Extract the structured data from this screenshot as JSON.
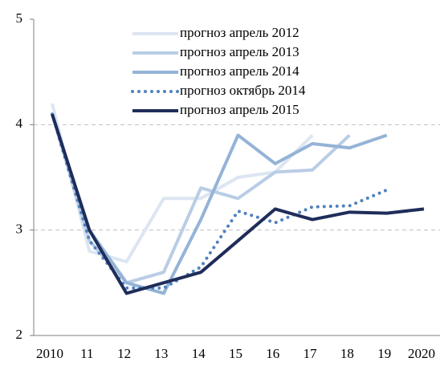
{
  "chart_data": {
    "type": "line",
    "categories": [
      "2010",
      "11",
      "12",
      "13",
      "14",
      "15",
      "16",
      "17",
      "18",
      "19",
      "2020"
    ],
    "series": [
      {
        "name": "прогноз апрель 2012",
        "color": "#dce6f2",
        "dash": false,
        "values": [
          4.2,
          2.8,
          2.7,
          3.3,
          3.3,
          3.5,
          3.55,
          3.9,
          null,
          null,
          null
        ]
      },
      {
        "name": "прогноз апрель 2013",
        "color": "#b9cde5",
        "dash": false,
        "values": [
          4.1,
          2.9,
          2.5,
          2.6,
          3.4,
          3.3,
          3.55,
          3.57,
          3.9,
          null,
          null
        ]
      },
      {
        "name": "прогноз апрель 2014",
        "color": "#95b3d7",
        "dash": false,
        "values": [
          4.1,
          3.0,
          2.5,
          2.4,
          3.1,
          3.9,
          3.63,
          3.82,
          3.78,
          3.9,
          null
        ]
      },
      {
        "name": "прогноз октябрь 2014",
        "color": "#4f81bd",
        "dash": true,
        "values": [
          4.1,
          2.9,
          2.45,
          2.45,
          2.65,
          3.18,
          3.07,
          3.22,
          3.23,
          3.38,
          null
        ]
      },
      {
        "name": "прогноз апрель 2015",
        "color": "#1f2d5a",
        "dash": false,
        "values": [
          4.1,
          3.0,
          2.4,
          2.5,
          2.6,
          2.9,
          3.2,
          3.1,
          3.17,
          3.16,
          3.2
        ]
      }
    ],
    "ylim": [
      2,
      5
    ],
    "yticks": [
      2,
      3,
      4,
      5
    ],
    "grid": true
  }
}
